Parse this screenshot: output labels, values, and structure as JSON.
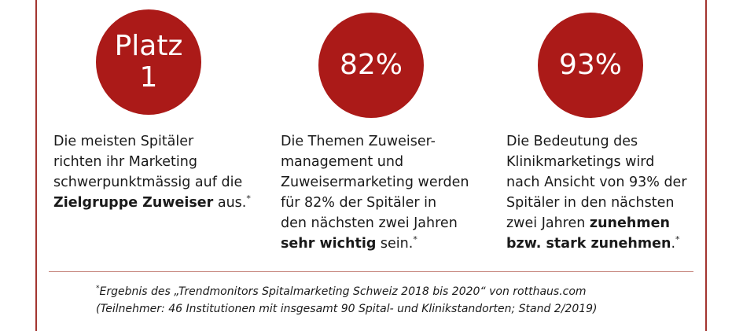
{
  "stats": [
    {
      "circle_line1": "Platz",
      "circle_line2": "1",
      "desc_lines": [
        "Die meisten Spitäler",
        "richten ihr Marketing",
        "schwerpunktmässig auf die"
      ],
      "desc_bold": "Zielgruppe Zuweiser",
      "desc_tail": " aus.",
      "marker": "*"
    },
    {
      "circle_value": "82%",
      "desc_lines": [
        "Die Themen Zuweiser-",
        "management und",
        "Zuweisermarketing werden",
        "für 82% der Spitäler in",
        "den nächsten zwei Jahren"
      ],
      "desc_bold": "sehr wichtig",
      "desc_tail": " sein.",
      "marker": "*"
    },
    {
      "circle_value": "93%",
      "desc_lines": [
        "Die Bedeutung des",
        "Klinikmarketings wird",
        "nach Ansicht von 93% der",
        "Spitäler in den nächsten"
      ],
      "desc_line5_plain": "zwei Jahren ",
      "desc_line5_bold": "zunehmen",
      "desc_line6_bold": "bzw. stark zunehmen",
      "desc_tail": ".",
      "marker": "*"
    }
  ],
  "footnote": {
    "marker": "*",
    "line1": "Ergebnis des „Trendmonitors Spitalmarketing Schweiz 2018 bis 2020“ von rotthaus.com",
    "line2": "(Teilnehmer: 46 Institutionen mit insgesamt 90 Spital- und Klinikstandorten; Stand 2/2019)"
  },
  "colors": {
    "accent": "#ab1a18",
    "frame": "#a33530",
    "text": "#1a1a1a"
  }
}
